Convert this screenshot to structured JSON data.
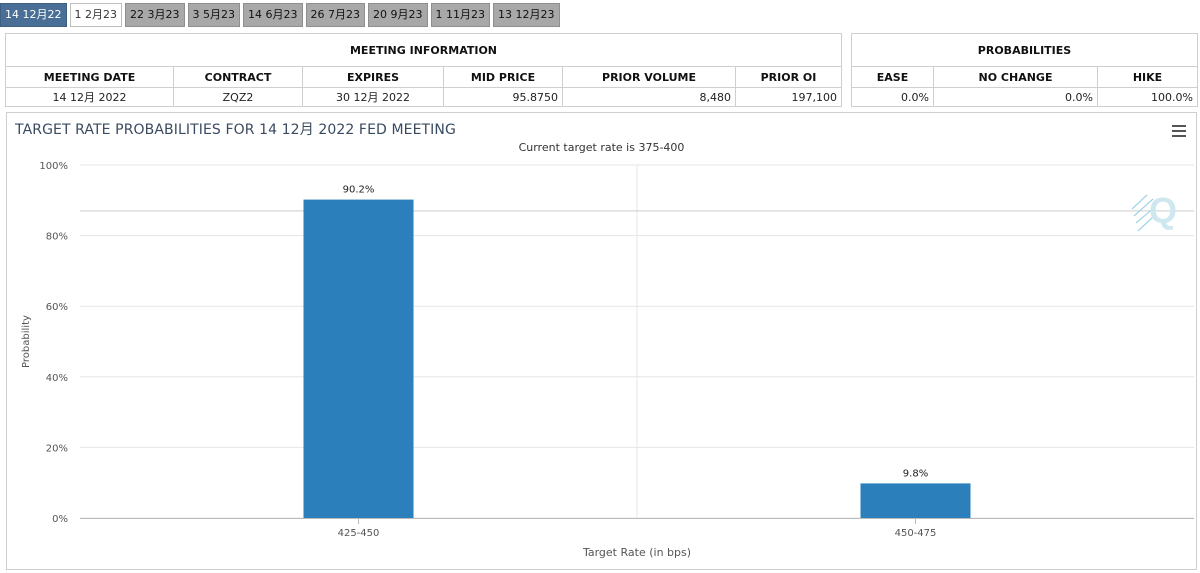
{
  "tabs": [
    "14 12月22",
    "1 2月23",
    "22 3月23",
    "3 5月23",
    "14 6月23",
    "26 7月23",
    "20 9月23",
    "1 11月23",
    "13 12月23"
  ],
  "meeting_info": {
    "header": "MEETING INFORMATION",
    "columns": [
      "MEETING DATE",
      "CONTRACT",
      "EXPIRES",
      "MID PRICE",
      "PRIOR VOLUME",
      "PRIOR OI"
    ],
    "values": [
      "14 12月 2022",
      "ZQZ2",
      "30 12月 2022",
      "95.8750",
      "8,480",
      "197,100"
    ]
  },
  "probabilities": {
    "header": "PROBABILITIES",
    "columns": [
      "EASE",
      "NO CHANGE",
      "HIKE"
    ],
    "values": [
      "0.0%",
      "0.0%",
      "100.0%"
    ]
  },
  "chart_data": {
    "type": "bar",
    "title": "TARGET RATE PROBABILITIES FOR 14 12月 2022 FED MEETING",
    "subtitle": "Current target rate is 375-400",
    "xlabel": "Target Rate (in bps)",
    "ylabel": "Probability",
    "categories": [
      "425-450",
      "450-475"
    ],
    "values": [
      90.2,
      9.8
    ],
    "data_labels": [
      "90.2%",
      "9.8%"
    ],
    "ylim": [
      0,
      100
    ],
    "yticks": [
      "0%",
      "20%",
      "40%",
      "60%",
      "80%",
      "100%"
    ],
    "bar_color": "#2b7fba",
    "grid": true,
    "watermark": "Q"
  }
}
